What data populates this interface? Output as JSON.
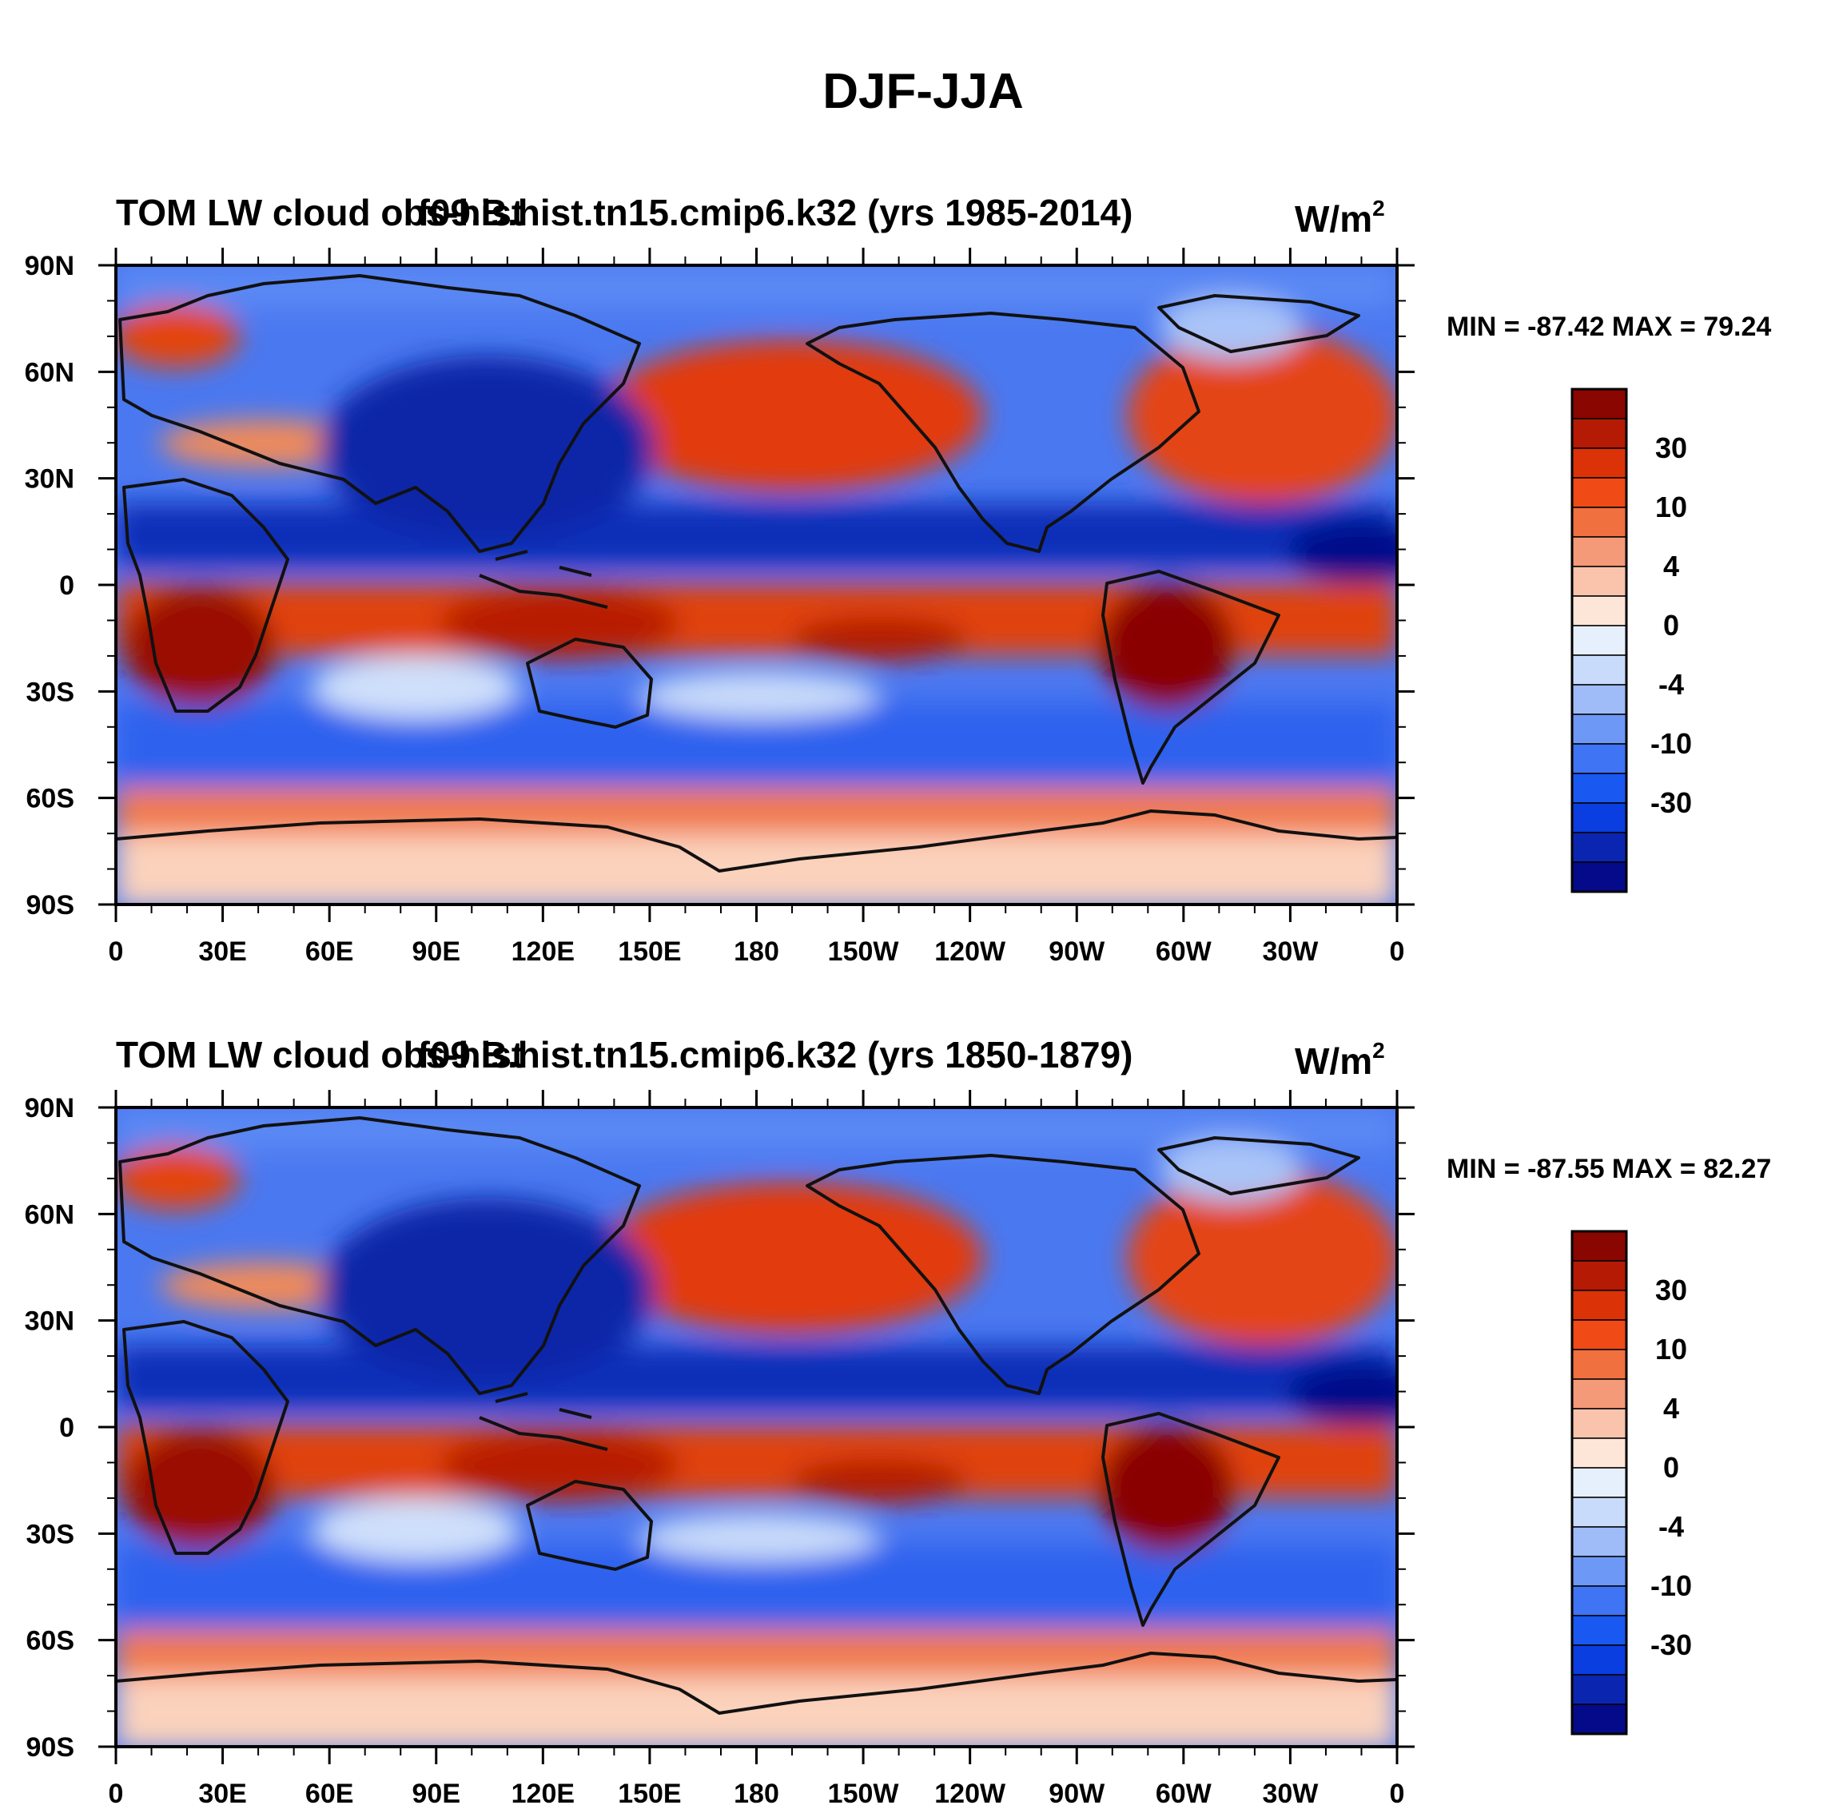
{
  "figure": {
    "title": "DJF-JJA",
    "colors": {
      "ocean_base": "#4a78f0",
      "coastline": "#111111",
      "frame": "#000000"
    }
  },
  "colorbar": {
    "colors": [
      "#050a8a",
      "#0a26b0",
      "#0a3ee0",
      "#1a58f2",
      "#3f74f4",
      "#6e98f6",
      "#9fbcf8",
      "#c9dbfa",
      "#e6f0fc",
      "#fde6d8",
      "#f9c4ab",
      "#f49a78",
      "#f0703f",
      "#f04a16",
      "#dc3208",
      "#b41a04",
      "#8a0600"
    ],
    "labels": [
      "-30",
      "-10",
      "-4",
      "0",
      "4",
      "10",
      "30"
    ]
  },
  "chart_data": [
    {
      "type": "heatmap",
      "left_title": "TOM LW cloud obs-hist",
      "center_title": "f09.B.hist.tn15.cmip6.k32 (yrs 1985-2014)",
      "units_base": "W/m",
      "units_exp": "2",
      "stats": "MIN = -87.42 MAX =  79.24",
      "min": -87.42,
      "max": 79.24,
      "xlim": [
        0,
        360
      ],
      "ylim": [
        -90,
        90
      ],
      "x_ticks": [
        "0",
        "30E",
        "60E",
        "90E",
        "120E",
        "150E",
        "180",
        "150W",
        "120W",
        "90W",
        "60W",
        "30W",
        "0"
      ],
      "y_ticks": [
        "90N",
        "60N",
        "30N",
        "0",
        "30S",
        "60S",
        "90S"
      ]
    },
    {
      "type": "heatmap",
      "left_title": "TOM LW cloud obs-hist",
      "center_title": "f09.B.hist.tn15.cmip6.k32 (yrs 1850-1879)",
      "units_base": "W/m",
      "units_exp": "2",
      "stats": "MIN = -87.55 MAX =  82.27",
      "min": -87.55,
      "max": 82.27,
      "xlim": [
        0,
        360
      ],
      "ylim": [
        -90,
        90
      ],
      "x_ticks": [
        "0",
        "30E",
        "60E",
        "90E",
        "120E",
        "150E",
        "180",
        "150W",
        "120W",
        "90W",
        "60W",
        "30W",
        "0"
      ],
      "y_ticks": [
        "90N",
        "60N",
        "30N",
        "0",
        "30S",
        "60S",
        "90S"
      ]
    }
  ]
}
